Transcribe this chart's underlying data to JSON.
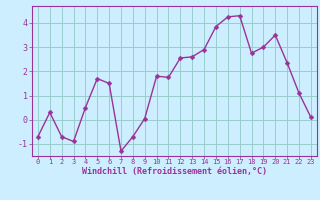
{
  "x": [
    0,
    1,
    2,
    3,
    4,
    5,
    6,
    7,
    8,
    9,
    10,
    11,
    12,
    13,
    14,
    15,
    16,
    17,
    18,
    19,
    20,
    21,
    22,
    23
  ],
  "y": [
    -0.7,
    0.3,
    -0.7,
    -0.9,
    0.5,
    1.7,
    1.5,
    -1.3,
    -0.7,
    0.05,
    1.8,
    1.75,
    2.55,
    2.6,
    2.9,
    3.85,
    4.25,
    4.3,
    2.75,
    3.0,
    3.5,
    2.35,
    1.1,
    0.1
  ],
  "line_color": "#993399",
  "marker": "D",
  "marker_size": 2.5,
  "linewidth": 1.0,
  "bg_color": "#cceeff",
  "grid_color": "#99cccc",
  "xlabel": "Windchill (Refroidissement éolien,°C)",
  "xlabel_color": "#993399",
  "tick_color": "#993399",
  "axis_color": "#993399",
  "ylim": [
    -1.5,
    4.7
  ],
  "xlim": [
    -0.5,
    23.5
  ],
  "yticks": [
    -1,
    0,
    1,
    2,
    3,
    4
  ],
  "xticks": [
    0,
    1,
    2,
    3,
    4,
    5,
    6,
    7,
    8,
    9,
    10,
    11,
    12,
    13,
    14,
    15,
    16,
    17,
    18,
    19,
    20,
    21,
    22,
    23
  ]
}
